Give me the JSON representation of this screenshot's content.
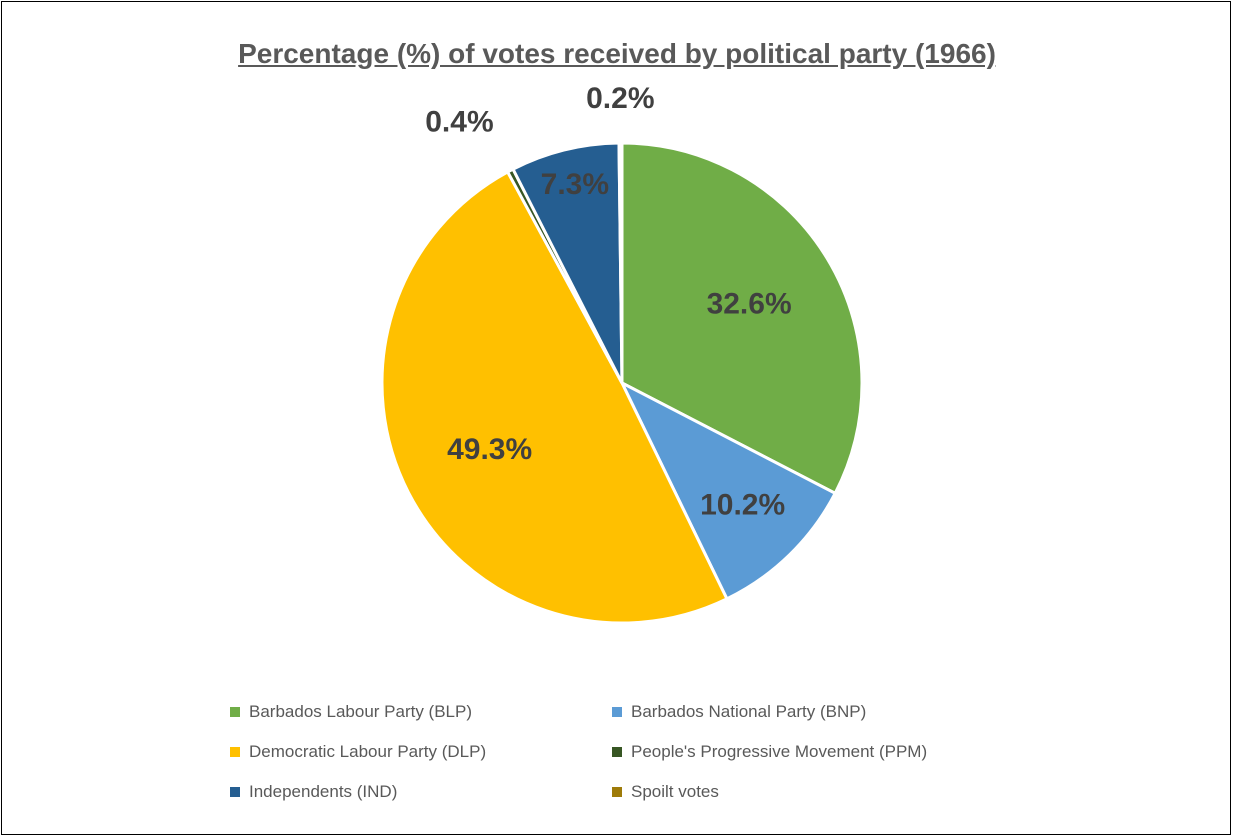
{
  "chart_data": {
    "type": "pie",
    "title": "Percentage (%) of votes received by political party (1966)",
    "slices": [
      {
        "name": "Barbados Labour Party (BLP)",
        "value": 32.6,
        "label": "32.6%",
        "color": "#70AD47"
      },
      {
        "name": "Barbados National Party (BNP)",
        "value": 10.2,
        "label": "10.2%",
        "color": "#5B9BD5"
      },
      {
        "name": "Democratic Labour Party (DLP)",
        "value": 49.3,
        "label": "49.3%",
        "color": "#FFC000"
      },
      {
        "name": "People's Progressive Movement (PPM)",
        "value": 0.4,
        "label": "0.4%",
        "color": "#375623"
      },
      {
        "name": "Independents (IND)",
        "value": 7.3,
        "label": "7.3%",
        "color": "#255E91"
      },
      {
        "name": "Spoilt votes",
        "value": 0.2,
        "label": "0.2%",
        "color": "#9E7B09"
      }
    ],
    "legend": {
      "position": "bottom",
      "items": [
        "Barbados Labour Party (BLP)",
        "Barbados National Party (BNP)",
        "Democratic Labour Party (DLP)",
        "People's Progressive Movement (PPM)",
        "Independents (IND)",
        "Spoilt votes"
      ]
    },
    "label_color": "#404040"
  }
}
